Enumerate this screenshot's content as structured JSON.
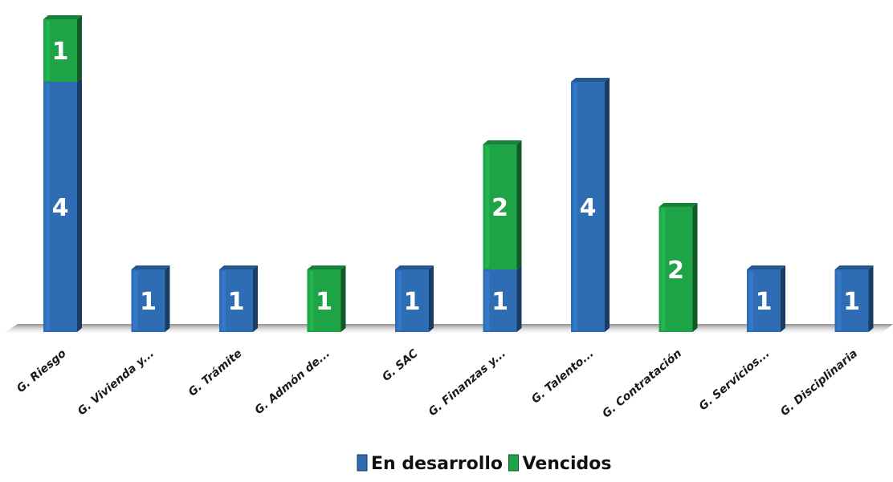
{
  "chart_data": {
    "type": "bar",
    "stacked": true,
    "title": "",
    "xlabel": "",
    "ylabel": "",
    "ylim": [
      0,
      5
    ],
    "grid": false,
    "legend_position": "bottom",
    "categories": [
      "G. Riesgo",
      "G. Vivienda y...",
      "G. Trámite",
      "G. Admón de...",
      "G. SAC",
      "G. Finanzas y...",
      "G. Talento...",
      "G. Contratación",
      "G. Servicios...",
      "G. Disciplinaria"
    ],
    "series": [
      {
        "name": "En desarrollo",
        "color": "#2e6db4",
        "values": [
          4,
          1,
          1,
          0,
          1,
          1,
          4,
          0,
          1,
          1
        ]
      },
      {
        "name": "Vencidos",
        "color": "#1fa347",
        "values": [
          1,
          0,
          0,
          1,
          0,
          2,
          0,
          2,
          0,
          0
        ]
      }
    ]
  }
}
